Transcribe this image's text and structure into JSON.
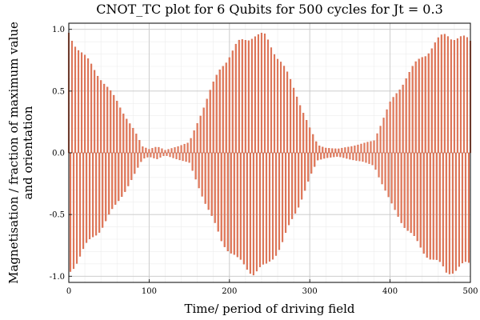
{
  "chart_data": {
    "type": "bar",
    "title": "CNOT_TC plot for 6 Qubits for 500 cycles for Jt = 0.3",
    "xlabel": "Time/ period of driving field",
    "ylabel_line1": "Magnetisation / fraction of maximum value",
    "ylabel_line2": "and orientation",
    "xlim": [
      0,
      500
    ],
    "ylim": [
      -1.05,
      1.05
    ],
    "xticks": [
      0,
      100,
      200,
      300,
      400,
      500
    ],
    "yticks": [
      -1.0,
      -0.5,
      0.0,
      0.5,
      1.0
    ],
    "xtick_labels": [
      "0",
      "100",
      "200",
      "300",
      "400",
      "500"
    ],
    "ytick_labels": [
      "-1.0",
      "-0.5",
      "0.0",
      "0.5",
      "1.0"
    ],
    "grid": true,
    "legend": "none",
    "bar_color": "#e2795a",
    "bar_edge_color": "#c9573a",
    "series": [
      {
        "x_start": 0,
        "x_step": 2,
        "envelope_points": [
          [
            0,
            0.97
          ],
          [
            20,
            0.78
          ],
          [
            40,
            0.62
          ],
          [
            60,
            0.42
          ],
          [
            80,
            0.2
          ],
          [
            92,
            0.05
          ],
          [
            100,
            0.03
          ],
          [
            110,
            0.05
          ],
          [
            120,
            0.02
          ],
          [
            130,
            0.04
          ],
          [
            140,
            0.06
          ],
          [
            150,
            0.08
          ],
          [
            170,
            0.4
          ],
          [
            190,
            0.7
          ],
          [
            210,
            0.88
          ],
          [
            230,
            0.98
          ],
          [
            245,
            0.95
          ],
          [
            265,
            0.75
          ],
          [
            285,
            0.45
          ],
          [
            300,
            0.2
          ],
          [
            310,
            0.06
          ],
          [
            320,
            0.04
          ],
          [
            335,
            0.03
          ],
          [
            350,
            0.05
          ],
          [
            365,
            0.07
          ],
          [
            380,
            0.1
          ],
          [
            400,
            0.4
          ],
          [
            420,
            0.62
          ],
          [
            440,
            0.8
          ],
          [
            460,
            0.92
          ],
          [
            470,
            0.98
          ],
          [
            480,
            0.95
          ],
          [
            500,
            0.9
          ]
        ]
      }
    ]
  }
}
